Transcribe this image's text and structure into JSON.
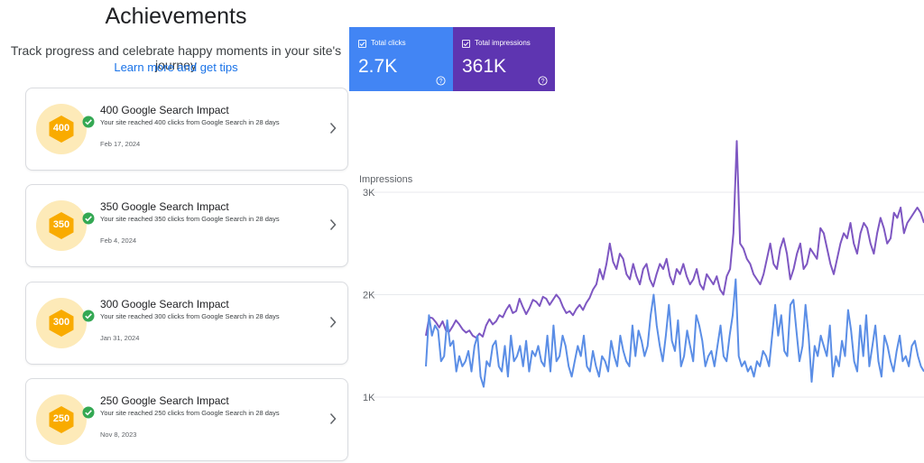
{
  "page": {
    "title": "Achievements",
    "subtitle": "Track progress and celebrate happy moments in your site's journey",
    "link": "Learn more and get tips"
  },
  "achievements": [
    {
      "badge": "400",
      "title": "400 Google Search Impact",
      "description": "Your site reached 400 clicks from Google Search in 28 days",
      "date": "Feb 17, 2024"
    },
    {
      "badge": "350",
      "title": "350 Google Search Impact",
      "description": "Your site reached 350 clicks from Google Search in 28 days",
      "date": "Feb 4, 2024"
    },
    {
      "badge": "300",
      "title": "300 Google Search Impact",
      "description": "Your site reached 300 clicks from Google Search in 28 days",
      "date": "Jan 31, 2024"
    },
    {
      "badge": "250",
      "title": "250 Google Search Impact",
      "description": "Your site reached 250 clicks from Google Search in 28 days",
      "date": "Nov 8, 2023"
    }
  ],
  "metrics": {
    "clicks": {
      "label": "Total clicks",
      "value": "2.7K",
      "color": "#4285f4",
      "checked": true
    },
    "impressions": {
      "label": "Total impressions",
      "value": "361K",
      "color": "#5e35b1",
      "checked": true
    }
  },
  "colors": {
    "badge_bg": "#fdeab8",
    "badge_hex": "#f9ab00",
    "check": "#34a853",
    "link": "#1a73e8"
  },
  "icons": {
    "achievement_check": "check-circle-icon",
    "chevron": "chevron-right-icon",
    "help": "help-circle-icon",
    "checkbox": "checkbox-checked-icon"
  },
  "chart_data": {
    "type": "line",
    "ylabel": "Impressions",
    "yticks": [
      "3K",
      "2K",
      "1K"
    ],
    "ytick_values": [
      3000,
      2000,
      1000
    ],
    "ylim": [
      1000,
      3200
    ],
    "grid": true,
    "series": [
      {
        "name": "Total impressions",
        "color": "#7e57c2",
        "values": [
          1600,
          1780,
          1770,
          1730,
          1680,
          1740,
          1650,
          1640,
          1690,
          1750,
          1710,
          1660,
          1630,
          1650,
          1600,
          1580,
          1620,
          1590,
          1700,
          1760,
          1710,
          1740,
          1800,
          1780,
          1850,
          1900,
          1820,
          1840,
          1960,
          1880,
          1810,
          1870,
          1950,
          1930,
          1890,
          1980,
          1960,
          1900,
          1950,
          2000,
          1960,
          1880,
          1820,
          1840,
          1800,
          1860,
          1900,
          1850,
          1920,
          1970,
          2050,
          2100,
          2250,
          2150,
          2300,
          2500,
          2320,
          2250,
          2400,
          2350,
          2200,
          2150,
          2300,
          2180,
          2100,
          2250,
          2300,
          2150,
          2080,
          2200,
          2300,
          2250,
          2350,
          2180,
          2100,
          2250,
          2200,
          2300,
          2180,
          2100,
          2150,
          2250,
          2100,
          2050,
          2200,
          2150,
          2100,
          2180,
          2050,
          2000,
          2180,
          2250,
          2600,
          3500,
          2500,
          2450,
          2350,
          2300,
          2200,
          2150,
          2100,
          2200,
          2350,
          2500,
          2300,
          2250,
          2450,
          2550,
          2400,
          2150,
          2250,
          2400,
          2500,
          2250,
          2300,
          2450,
          2400,
          2350,
          2650,
          2600,
          2450,
          2300,
          2200,
          2350,
          2500,
          2600,
          2550,
          2700,
          2500,
          2400,
          2600,
          2700,
          2650,
          2500,
          2400,
          2600,
          2750,
          2650,
          2500,
          2550,
          2800,
          2750,
          2850,
          2600,
          2700,
          2750,
          2800,
          2850,
          2800,
          2700
        ]
      },
      {
        "name": "Total clicks",
        "color": "#5b8ee6",
        "values": [
          1300,
          1800,
          1600,
          1700,
          1650,
          1350,
          1400,
          1750,
          1500,
          1550,
          1250,
          1400,
          1300,
          1350,
          1450,
          1250,
          1500,
          1600,
          1200,
          1100,
          1350,
          1300,
          1500,
          1550,
          1300,
          1250,
          1500,
          1200,
          1600,
          1350,
          1400,
          1500,
          1300,
          1550,
          1250,
          1450,
          1400,
          1500,
          1350,
          1300,
          1600,
          1250,
          1700,
          1350,
          1400,
          1600,
          1500,
          1300,
          1200,
          1350,
          1500,
          1400,
          1600,
          1300,
          1250,
          1450,
          1300,
          1200,
          1400,
          1350,
          1250,
          1550,
          1400,
          1300,
          1600,
          1450,
          1350,
          1300,
          1700,
          1400,
          1650,
          1550,
          1400,
          1500,
          1800,
          2000,
          1700,
          1500,
          1350,
          1600,
          1900,
          1550,
          1450,
          1750,
          1300,
          1400,
          1650,
          1500,
          1350,
          1800,
          1700,
          1550,
          1300,
          1400,
          1450,
          1300,
          1500,
          1700,
          1400,
          1350,
          1600,
          1800,
          2150,
          1400,
          1300,
          1350,
          1250,
          1300,
          1200,
          1350,
          1300,
          1450,
          1400,
          1300,
          1600,
          1900,
          1600,
          1800,
          1450,
          1400,
          1900,
          1950,
          1650,
          1350,
          1500,
          1900,
          1600,
          1150,
          1500,
          1400,
          1600,
          1500,
          1400,
          1700,
          1200,
          1400,
          1300,
          1550,
          1400,
          1850,
          1650,
          1350,
          1250,
          1700,
          1400,
          1800,
          1300,
          1500,
          1700,
          1350,
          1200,
          1600,
          1500,
          1350,
          1250,
          1450,
          1600,
          1350,
          1400,
          1300,
          1500,
          1550,
          1400,
          1300,
          1250
        ]
      }
    ]
  }
}
